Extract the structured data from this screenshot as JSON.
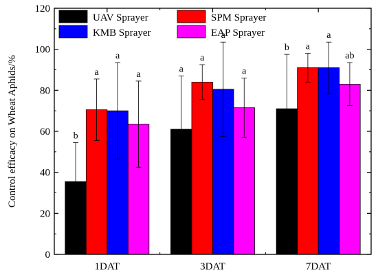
{
  "chart_data": {
    "type": "bar",
    "title": "",
    "xlabel": "",
    "ylabel": "Control efficacy on Wheat Aphids/%",
    "ylim": [
      0,
      120
    ],
    "yticks": [
      0,
      20,
      40,
      60,
      80,
      100,
      120
    ],
    "categories": [
      "1DAT",
      "3DAT",
      "7DAT"
    ],
    "legend_position": "top",
    "grid": false,
    "series": [
      {
        "name": "UAV Sprayer",
        "color": "#000000",
        "values": [
          35.5,
          61,
          71
        ],
        "errors": [
          19,
          26,
          26.5
        ],
        "significance": [
          "b",
          "a",
          "b"
        ]
      },
      {
        "name": "SPM Sprayer",
        "color": "#ff0000",
        "values": [
          70.5,
          84,
          91
        ],
        "errors": [
          15,
          8.5,
          7
        ],
        "significance": [
          "a",
          "a",
          "a"
        ]
      },
      {
        "name": "KMB Sprayer",
        "color": "#0000ff",
        "values": [
          70,
          80.5,
          91
        ],
        "errors": [
          23.5,
          23,
          12.5
        ],
        "significance": [
          "a",
          "a",
          "a"
        ]
      },
      {
        "name": "EAP Sprayer",
        "color": "#ff00ff",
        "values": [
          63.5,
          71.5,
          83
        ],
        "errors": [
          21,
          14.5,
          10.5
        ],
        "significance": [
          "a",
          "a",
          "ab"
        ]
      }
    ]
  }
}
